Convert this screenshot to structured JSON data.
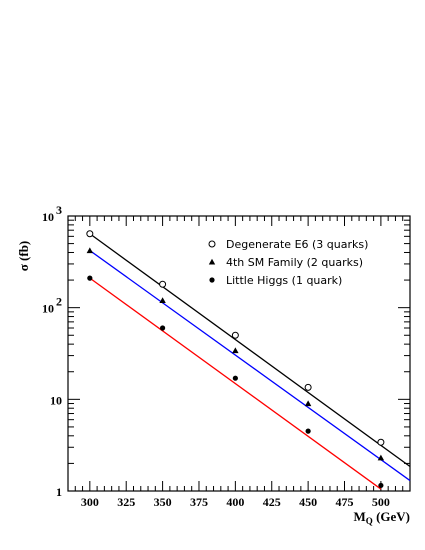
{
  "chart_data": {
    "type": "scatter",
    "title": "",
    "xlabel": "M_Q (GeV)",
    "xlabel_main": "M",
    "xlabel_sub": "Q",
    "xlabel_unit": "(GeV)",
    "ylabel": "σ (fb)",
    "y_scale": "log",
    "xlim": [
      285,
      520
    ],
    "ylim": [
      1,
      1000
    ],
    "x_ticks": [
      300,
      325,
      350,
      375,
      400,
      425,
      450,
      475,
      500
    ],
    "y_ticks": [
      {
        "value": 1,
        "label": "1"
      },
      {
        "value": 10,
        "label": "10"
      },
      {
        "value": 100,
        "label": "10",
        "exp": "2"
      },
      {
        "value": 1000,
        "label": "10",
        "exp": "3"
      }
    ],
    "grid": false,
    "legend_position": "top-right",
    "series": [
      {
        "name": "Degenerate E6 (3 quarks)",
        "marker": "open-circle",
        "line_color": "#000000",
        "x": [
          300,
          350,
          400,
          450,
          500
        ],
        "y": [
          640,
          180,
          50,
          13.5,
          3.4
        ],
        "fit_x": [
          300,
          520
        ],
        "fit_y": [
          640,
          1.85
        ]
      },
      {
        "name": "4th SM Family (2 quarks)",
        "marker": "triangle",
        "line_color": "#0000ff",
        "x": [
          300,
          350,
          400,
          450,
          500
        ],
        "y": [
          420,
          120,
          34,
          9.0,
          2.3
        ],
        "fit_x": [
          300,
          520
        ],
        "fit_y": [
          420,
          1.3
        ]
      },
      {
        "name": "Little Higgs (1 quark)",
        "marker": "filled-circle",
        "line_color": "#ff0000",
        "x": [
          300,
          350,
          400,
          450,
          500
        ],
        "y": [
          210,
          60,
          17,
          4.5,
          1.15
        ],
        "fit_x": [
          300,
          500
        ],
        "fit_y": [
          210,
          1.05
        ]
      }
    ]
  }
}
